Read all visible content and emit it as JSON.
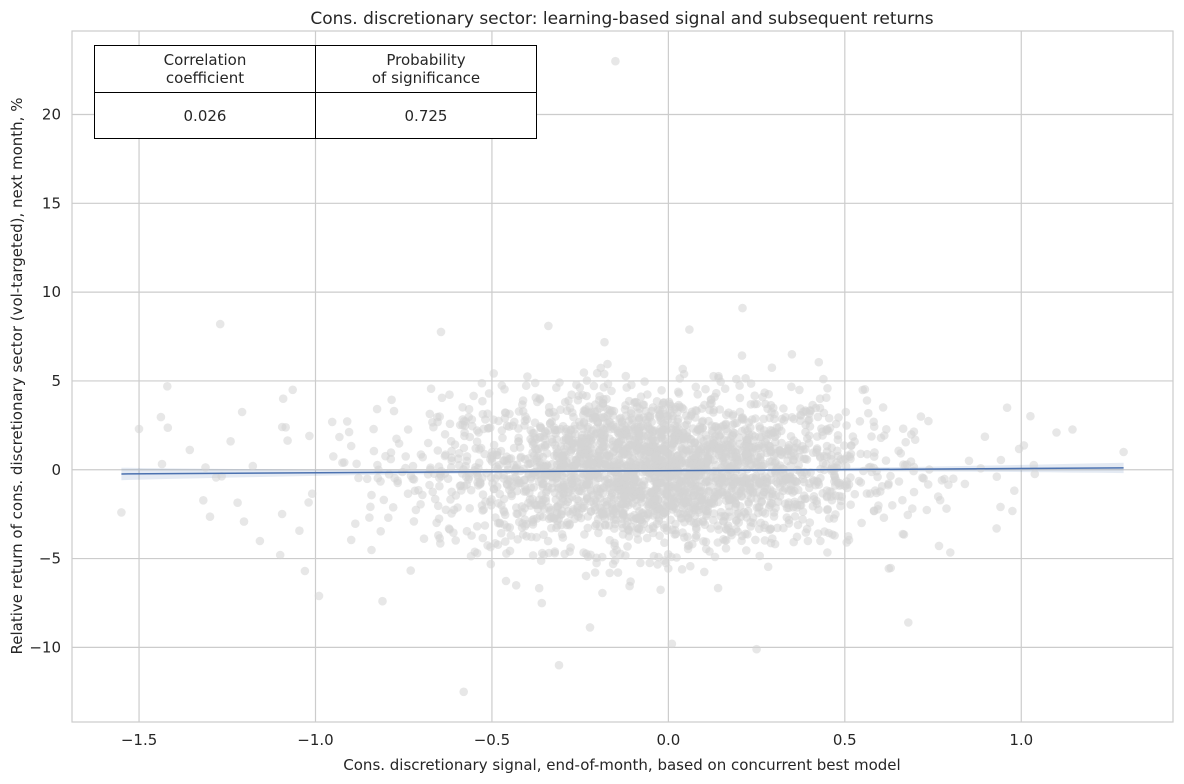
{
  "chart_data": {
    "type": "scatter",
    "title": "Cons. discretionary sector: learning-based signal and subsequent returns",
    "xlabel": "Cons. discretionary signal, end-of-month, based on concurrent best model",
    "ylabel": "Relative return of cons. discretionary sector (vol-targeted), next month, %",
    "xlim": [
      -1.69,
      1.43
    ],
    "ylim": [
      -14.2,
      24.7
    ],
    "xticks": [
      -1.5,
      -1.0,
      -0.5,
      0.0,
      0.5,
      1.0
    ],
    "xtick_labels": [
      "−1.5",
      "−1.0",
      "−0.5",
      "0.0",
      "0.5",
      "1.0"
    ],
    "yticks": [
      -10,
      -5,
      0,
      5,
      10,
      15,
      20
    ],
    "ytick_labels": [
      "−10",
      "−5",
      "0",
      "5",
      "10",
      "15",
      "20"
    ],
    "grid": true,
    "regression": {
      "x_range": [
        -1.55,
        1.29
      ],
      "intercept": -0.05,
      "slope": 0.12,
      "ci_half_width_edges": 0.35,
      "ci_half_width_center": 0.06
    },
    "points_note": "approx. 3000 monthly observations; cloud centered near x=-0.05, y=0",
    "notable_points": [
      {
        "x": -0.15,
        "y": 23.0
      },
      {
        "x": 0.21,
        "y": 9.1
      },
      {
        "x": -1.27,
        "y": 8.2
      },
      {
        "x": -0.34,
        "y": 8.1
      },
      {
        "x": 0.35,
        "y": 6.5
      },
      {
        "x": -1.42,
        "y": 4.7
      },
      {
        "x": -1.55,
        "y": -2.4
      },
      {
        "x": -1.5,
        "y": 2.3
      },
      {
        "x": 1.1,
        "y": 2.1
      },
      {
        "x": 1.29,
        "y": 1.0
      },
      {
        "x": -0.58,
        "y": -12.5
      },
      {
        "x": -0.31,
        "y": -11.0
      },
      {
        "x": 0.25,
        "y": -10.1
      },
      {
        "x": 0.01,
        "y": -9.8
      },
      {
        "x": 0.68,
        "y": -8.6
      },
      {
        "x": -0.99,
        "y": -7.1
      },
      {
        "x": -0.81,
        "y": -7.4
      },
      {
        "x": -1.03,
        "y": -5.7
      },
      {
        "x": -1.1,
        "y": -4.8
      },
      {
        "x": 0.93,
        "y": -3.3
      }
    ]
  },
  "table": {
    "headers": [
      [
        "Correlation",
        "coefficient"
      ],
      [
        "Probability",
        "of significance"
      ]
    ],
    "values": [
      "0.026",
      "0.725"
    ]
  }
}
